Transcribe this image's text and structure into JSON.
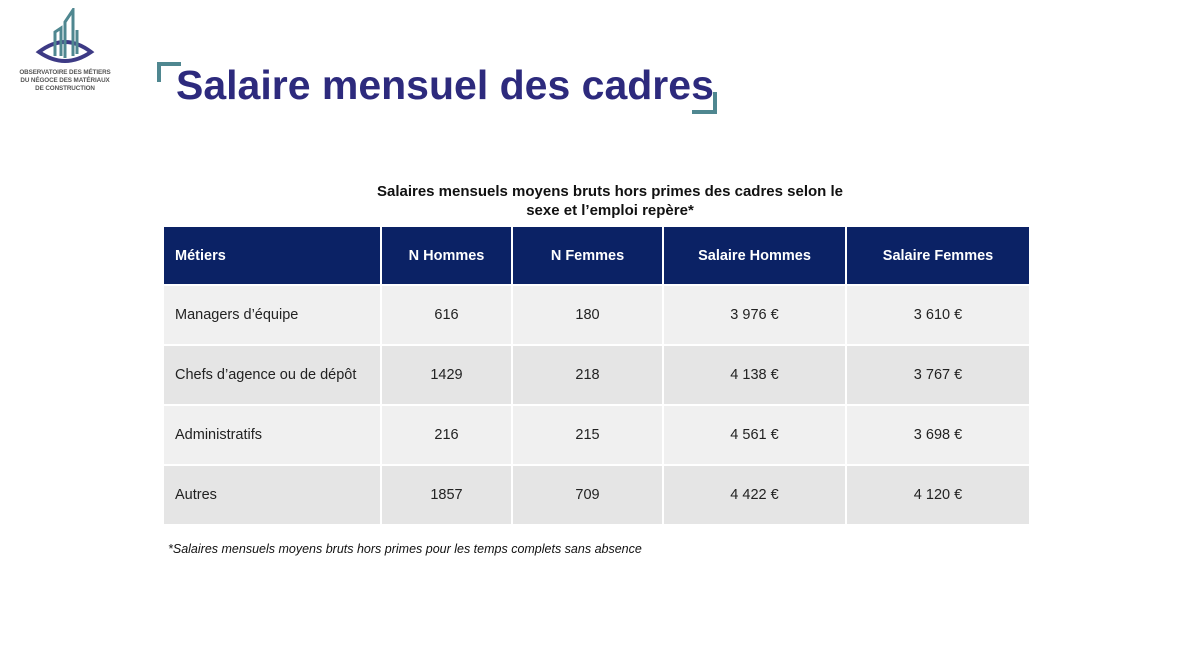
{
  "logo": {
    "text": [
      "OBSERVATOIRE DES MÉTIERS",
      "DU NÉGOCE DES MATÉRIAUX",
      "DE CONSTRUCTION"
    ]
  },
  "title": "Salaire mensuel des cadres",
  "caption": [
    "Salaires mensuels moyens bruts hors primes des cadres selon le",
    "sexe et l’emploi repère*"
  ],
  "table": {
    "headers": [
      "Métiers",
      "N Hommes",
      "N Femmes",
      "Salaire Hommes",
      "Salaire Femmes"
    ],
    "rows": [
      [
        "Managers d’équipe",
        "616",
        "180",
        "3 976 €",
        "3 610 €"
      ],
      [
        "Chefs d’agence ou de dépôt",
        "1429",
        "218",
        "4 138 €",
        "3 767 €"
      ],
      [
        "Administratifs",
        "216",
        "215",
        "4 561 €",
        "3 698 €"
      ],
      [
        "Autres",
        "1857",
        "709",
        "4 422 €",
        "4 120 €"
      ]
    ]
  },
  "note": "*Salaires mensuels moyens bruts hors primes pour les temps complets sans absence",
  "colors": {
    "header": "#0b2265",
    "title": "#2d2a7d",
    "accent": "#4f8790"
  }
}
